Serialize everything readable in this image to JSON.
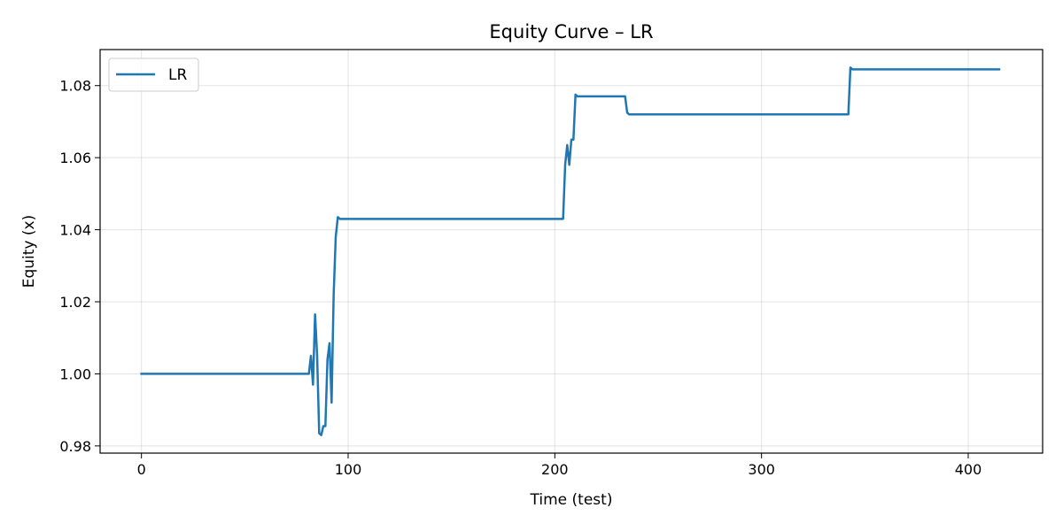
{
  "chart_data": {
    "type": "line",
    "title": "Equity Curve – LR",
    "xlabel": "Time (test)",
    "ylabel": "Equity (x)",
    "xlim": [
      -20,
      436
    ],
    "ylim": [
      0.978,
      1.09
    ],
    "x_ticks": [
      0,
      100,
      200,
      300,
      400
    ],
    "x_tick_labels": [
      "0",
      "100",
      "200",
      "300",
      "400"
    ],
    "y_ticks": [
      0.98,
      1.0,
      1.02,
      1.04,
      1.06,
      1.08
    ],
    "y_tick_labels": [
      "0.98",
      "1.00",
      "1.02",
      "1.04",
      "1.06",
      "1.08"
    ],
    "grid": true,
    "legend": {
      "position": "top-left",
      "entries": [
        "LR"
      ]
    },
    "series": [
      {
        "name": "LR",
        "color": "#1f77b4",
        "points": [
          [
            0,
            1.0
          ],
          [
            81,
            1.0
          ],
          [
            82,
            1.005
          ],
          [
            83,
            0.997
          ],
          [
            84,
            1.0165
          ],
          [
            85,
            1.005
          ],
          [
            86,
            0.9835
          ],
          [
            87,
            0.983
          ],
          [
            88,
            0.9855
          ],
          [
            89,
            0.9855
          ],
          [
            90,
            1.004
          ],
          [
            91,
            1.0085
          ],
          [
            92,
            0.992
          ],
          [
            93,
            1.022
          ],
          [
            94,
            1.038
          ],
          [
            95,
            1.0435
          ],
          [
            96,
            1.043
          ],
          [
            204,
            1.043
          ],
          [
            205,
            1.058
          ],
          [
            206,
            1.0635
          ],
          [
            207,
            1.058
          ],
          [
            208,
            1.065
          ],
          [
            209,
            1.065
          ],
          [
            210,
            1.0775
          ],
          [
            211,
            1.077
          ],
          [
            234,
            1.077
          ],
          [
            235,
            1.0725
          ],
          [
            236,
            1.072
          ],
          [
            342,
            1.072
          ],
          [
            343,
            1.085
          ],
          [
            344,
            1.0845
          ],
          [
            415,
            1.0845
          ]
        ]
      }
    ]
  }
}
